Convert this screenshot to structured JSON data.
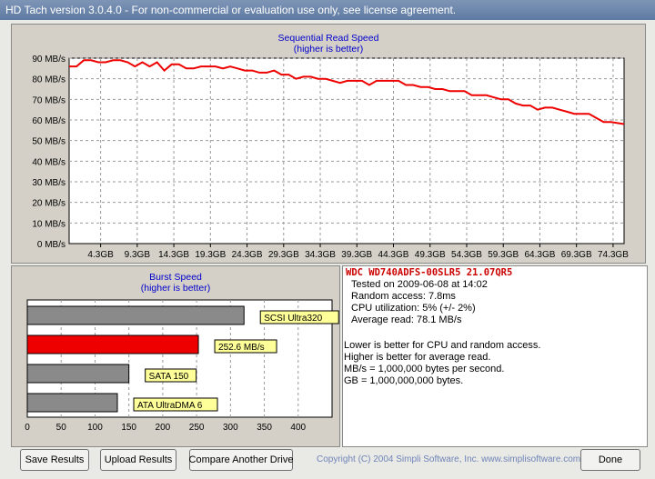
{
  "window": {
    "title": "HD Tach version 3.0.4.0  - For non-commercial or evaluation use only, see license agreement."
  },
  "chart_data": [
    {
      "type": "line",
      "title": "Sequential Read Speed",
      "subtitle": "(higher is better)",
      "x_tick_labels": [
        "4.3GB",
        "9.3GB",
        "14.3GB",
        "19.3GB",
        "24.3GB",
        "29.3GB",
        "34.3GB",
        "39.3GB",
        "44.3GB",
        "49.3GB",
        "54.3GB",
        "59.3GB",
        "64.3GB",
        "69.3GB",
        "74.3GB"
      ],
      "y_tick_labels": [
        "0 MB/s",
        "10 MB/s",
        "20 MB/s",
        "30 MB/s",
        "40 MB/s",
        "50 MB/s",
        "60 MB/s",
        "70 MB/s",
        "80 MB/s",
        "90 MB/s"
      ],
      "xlim": [
        0,
        75.8
      ],
      "ylim": [
        0,
        90
      ],
      "grid": true,
      "series": [
        {
          "color": "#ee0000",
          "x": [
            0,
            1,
            2,
            3,
            4,
            5,
            6,
            7,
            8,
            9,
            10,
            11,
            12,
            13,
            14,
            15,
            16,
            17,
            18,
            19,
            20,
            21,
            22,
            23,
            24,
            25,
            26,
            27,
            28,
            29,
            30,
            31,
            32,
            33,
            34,
            35,
            36,
            37,
            38,
            39,
            40,
            41,
            42,
            43,
            44,
            45,
            46,
            47,
            48,
            49,
            50,
            51,
            52,
            53,
            54,
            55,
            56,
            57,
            58,
            59,
            60,
            61,
            62,
            63,
            64,
            65,
            66,
            67,
            68,
            69,
            70,
            71,
            72,
            73,
            74,
            75.8
          ],
          "y": [
            86,
            86,
            89,
            89,
            88,
            88,
            89,
            89,
            88,
            86,
            88,
            86,
            88,
            84,
            87,
            87,
            85,
            85,
            86,
            86,
            86,
            85,
            86,
            85,
            84,
            84,
            83,
            83,
            84,
            82,
            82,
            80,
            81,
            81,
            80,
            80,
            79,
            78,
            79,
            79,
            79,
            77,
            79,
            79,
            79,
            79,
            77,
            77,
            76,
            76,
            75,
            75,
            74,
            74,
            74,
            72,
            72,
            72,
            71,
            70,
            70,
            68,
            67,
            67,
            65,
            66,
            66,
            65,
            64,
            63,
            63,
            63,
            61,
            59,
            59,
            58
          ]
        }
      ]
    },
    {
      "type": "bar",
      "orientation": "horizontal",
      "title": "Burst Speed",
      "subtitle": "(higher is better)",
      "x_tick_labels": [
        "0",
        "50",
        "100",
        "150",
        "200",
        "250",
        "300",
        "350",
        "400"
      ],
      "xlim": [
        0,
        450
      ],
      "grid": true,
      "bars": [
        {
          "label": "SCSI Ultra320",
          "value": 320,
          "color": "#8a8a8a"
        },
        {
          "label": "252.6 MB/s",
          "value": 252.6,
          "color": "#ee0000"
        },
        {
          "label": "SATA 150",
          "value": 150,
          "color": "#8a8a8a"
        },
        {
          "label": "ATA UltraDMA 6",
          "value": 133,
          "color": "#8a8a8a"
        }
      ]
    }
  ],
  "info": {
    "drive": "WDC  WD740ADFS-00SLR5  21.07QR5",
    "tested": "Tested on 2009-06-08 at 14:02",
    "random_access": "Random access: 7.8ms",
    "cpu": "CPU utilization: 5% (+/- 2%)",
    "average_read": "Average read: 78.1 MB/s",
    "notes": [
      "Lower is better for CPU and random access.",
      "Higher is better for average read.",
      "MB/s = 1,000,000 bytes per second.",
      "GB = 1,000,000,000 bytes."
    ]
  },
  "buttons": {
    "save": "Save Results",
    "upload": "Upload Results",
    "compare": "Compare Another Drive",
    "done": "Done"
  },
  "copyright": "Copyright (C) 2004 Simpli Software, Inc. www.simplisoftware.com"
}
